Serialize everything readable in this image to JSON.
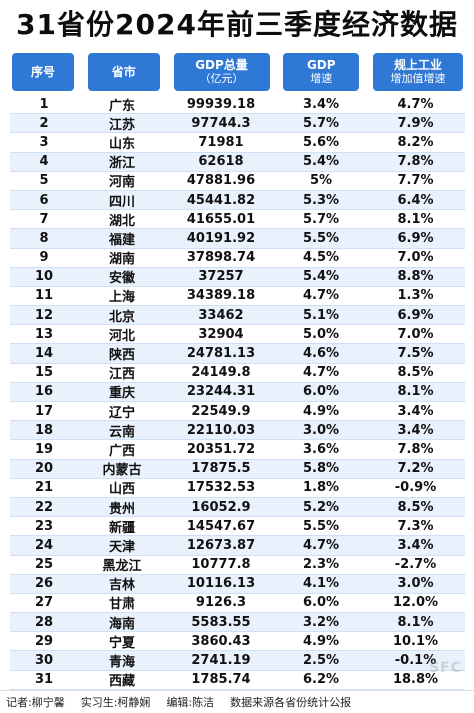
{
  "title": "31省份2024年前三季度经济数据",
  "table": {
    "headers": {
      "rank": "序号",
      "province": "省市",
      "gdp_line1": "GDP总量",
      "gdp_line2": "（亿元）",
      "growth_line1": "GDP",
      "growth_line2": "增速",
      "industry_line1": "规上工业",
      "industry_line2": "增加值增速"
    },
    "rows": [
      {
        "rank": "1",
        "province": "广东",
        "gdp": "99939.18",
        "growth": "3.4%",
        "industry": "4.7%"
      },
      {
        "rank": "2",
        "province": "江苏",
        "gdp": "97744.3",
        "growth": "5.7%",
        "industry": "7.9%"
      },
      {
        "rank": "3",
        "province": "山东",
        "gdp": "71981",
        "growth": "5.6%",
        "industry": "8.2%"
      },
      {
        "rank": "4",
        "province": "浙江",
        "gdp": "62618",
        "growth": "5.4%",
        "industry": "7.8%"
      },
      {
        "rank": "5",
        "province": "河南",
        "gdp": "47881.96",
        "growth": "5%",
        "industry": "7.7%"
      },
      {
        "rank": "6",
        "province": "四川",
        "gdp": "45441.82",
        "growth": "5.3%",
        "industry": "6.4%"
      },
      {
        "rank": "7",
        "province": "湖北",
        "gdp": "41655.01",
        "growth": "5.7%",
        "industry": "8.1%"
      },
      {
        "rank": "8",
        "province": "福建",
        "gdp": "40191.92",
        "growth": "5.5%",
        "industry": "6.9%"
      },
      {
        "rank": "9",
        "province": "湖南",
        "gdp": "37898.74",
        "growth": "4.5%",
        "industry": "7.0%"
      },
      {
        "rank": "10",
        "province": "安徽",
        "gdp": "37257",
        "growth": "5.4%",
        "industry": "8.8%"
      },
      {
        "rank": "11",
        "province": "上海",
        "gdp": "34389.18",
        "growth": "4.7%",
        "industry": "1.3%"
      },
      {
        "rank": "12",
        "province": "北京",
        "gdp": "33462",
        "growth": "5.1%",
        "industry": "6.9%"
      },
      {
        "rank": "13",
        "province": "河北",
        "gdp": "32904",
        "growth": "5.0%",
        "industry": "7.0%"
      },
      {
        "rank": "14",
        "province": "陕西",
        "gdp": "24781.13",
        "growth": "4.6%",
        "industry": "7.5%"
      },
      {
        "rank": "15",
        "province": "江西",
        "gdp": "24149.8",
        "growth": "4.7%",
        "industry": "8.5%"
      },
      {
        "rank": "16",
        "province": "重庆",
        "gdp": "23244.31",
        "growth": "6.0%",
        "industry": "8.1%"
      },
      {
        "rank": "17",
        "province": "辽宁",
        "gdp": "22549.9",
        "growth": "4.9%",
        "industry": "3.4%"
      },
      {
        "rank": "18",
        "province": "云南",
        "gdp": "22110.03",
        "growth": "3.0%",
        "industry": "3.4%"
      },
      {
        "rank": "19",
        "province": "广西",
        "gdp": "20351.72",
        "growth": "3.6%",
        "industry": "7.8%"
      },
      {
        "rank": "20",
        "province": "内蒙古",
        "gdp": "17875.5",
        "growth": "5.8%",
        "industry": "7.2%"
      },
      {
        "rank": "21",
        "province": "山西",
        "gdp": "17532.53",
        "growth": "1.8%",
        "industry": "-0.9%"
      },
      {
        "rank": "22",
        "province": "贵州",
        "gdp": "16052.9",
        "growth": "5.2%",
        "industry": "8.5%"
      },
      {
        "rank": "23",
        "province": "新疆",
        "gdp": "14547.67",
        "growth": "5.5%",
        "industry": "7.3%"
      },
      {
        "rank": "24",
        "province": "天津",
        "gdp": "12673.87",
        "growth": "4.7%",
        "industry": "3.4%"
      },
      {
        "rank": "25",
        "province": "黑龙江",
        "gdp": "10777.8",
        "growth": "2.3%",
        "industry": "-2.7%"
      },
      {
        "rank": "26",
        "province": "吉林",
        "gdp": "10116.13",
        "growth": "4.1%",
        "industry": "3.0%"
      },
      {
        "rank": "27",
        "province": "甘肃",
        "gdp": "9126.3",
        "growth": "6.0%",
        "industry": "12.0%"
      },
      {
        "rank": "28",
        "province": "海南",
        "gdp": "5583.55",
        "growth": "3.2%",
        "industry": "8.1%"
      },
      {
        "rank": "29",
        "province": "宁夏",
        "gdp": "3860.43",
        "growth": "4.9%",
        "industry": "10.1%"
      },
      {
        "rank": "30",
        "province": "青海",
        "gdp": "2741.19",
        "growth": "2.5%",
        "industry": "-0.1%"
      },
      {
        "rank": "31",
        "province": "西藏",
        "gdp": "1785.74",
        "growth": "6.2%",
        "industry": "18.8%"
      }
    ]
  },
  "footer": {
    "reporter": "记者:柳宁馨",
    "intern": "实习生:柯静娴",
    "editor": "编辑:陈洁",
    "source": "数据来源各省份统计公报"
  },
  "watermark": "SFC",
  "colors": {
    "header_bg": "#2f78d6",
    "row_alt_bg": "#e8f1fc"
  }
}
